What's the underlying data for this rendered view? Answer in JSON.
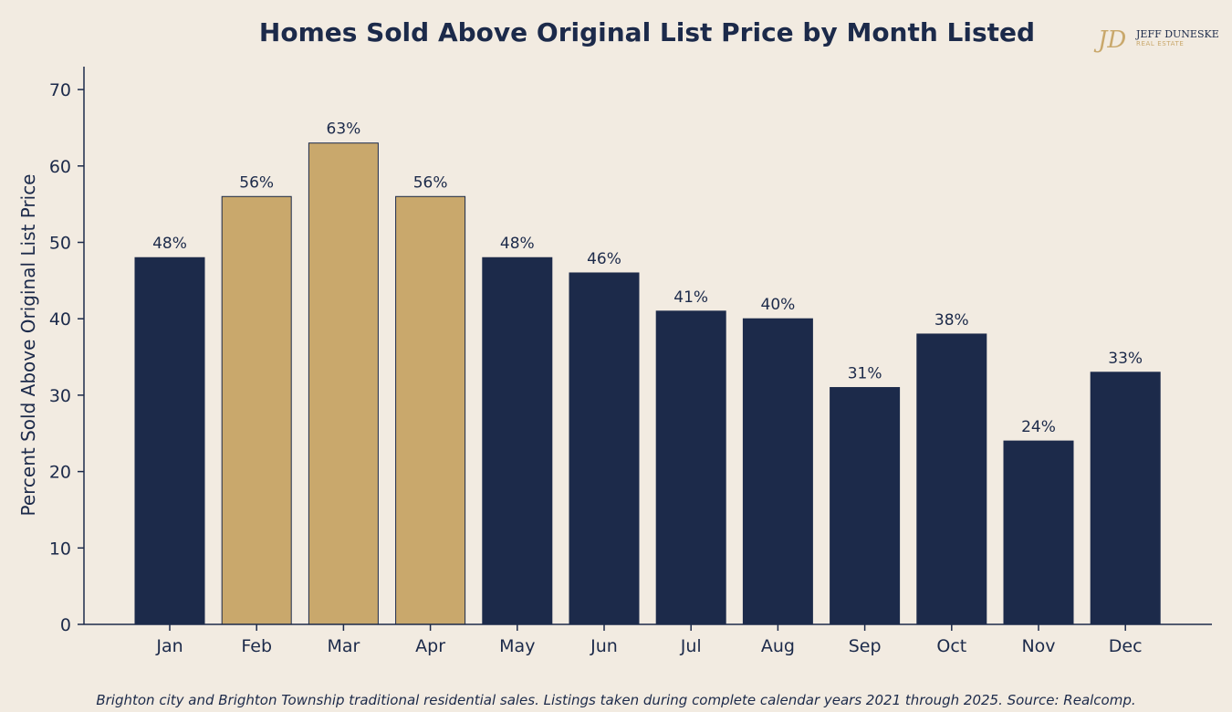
{
  "colors": {
    "background": "#f2ebe1",
    "navy": "#1c2a4a",
    "gold": "#c9a86c"
  },
  "logo": {
    "monogram": "JD",
    "name": "JEFF DUNESKE",
    "subtitle": "REAL ESTATE"
  },
  "footnote": "Brighton city and Brighton Township traditional residential sales. Listings taken during complete calendar years 2021 through 2025. Source: Realcomp.",
  "chart_data": {
    "type": "bar",
    "title": "Homes Sold Above Original List Price by Month Listed",
    "xlabel": "",
    "ylabel": "Percent Sold Above Original List Price",
    "categories": [
      "Jan",
      "Feb",
      "Mar",
      "Apr",
      "May",
      "Jun",
      "Jul",
      "Aug",
      "Sep",
      "Oct",
      "Nov",
      "Dec"
    ],
    "values": [
      48,
      56,
      63,
      56,
      48,
      46,
      41,
      40,
      31,
      38,
      24,
      33
    ],
    "labels": [
      "48%",
      "56%",
      "63%",
      "56%",
      "48%",
      "46%",
      "41%",
      "40%",
      "31%",
      "38%",
      "24%",
      "33%"
    ],
    "highlighted": [
      "Feb",
      "Mar",
      "Apr"
    ],
    "ylim": [
      0,
      73
    ],
    "yticks": [
      0,
      10,
      20,
      30,
      40,
      50,
      60,
      70
    ],
    "grid": false,
    "legend": "none"
  }
}
